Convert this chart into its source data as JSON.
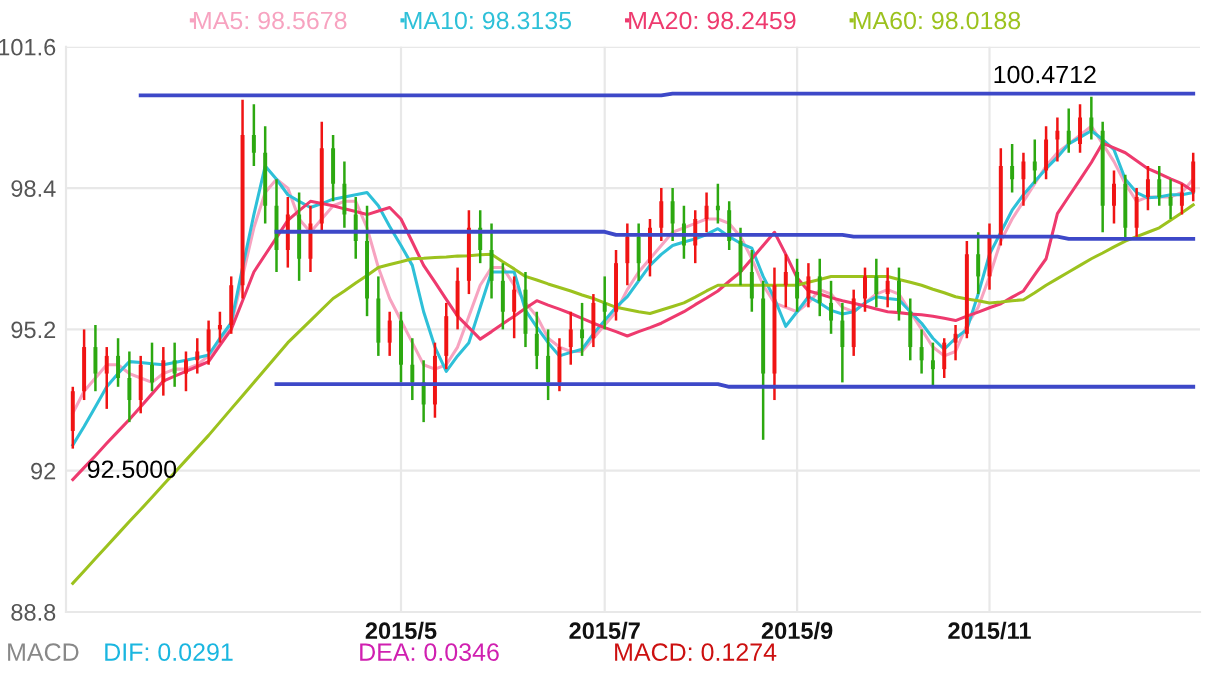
{
  "chart_data": {
    "type": "candlestick",
    "categories": [
      null,
      null,
      null,
      null,
      null,
      null,
      null,
      null,
      null,
      null,
      null,
      null,
      null,
      null,
      null,
      null,
      null,
      null,
      null,
      null,
      null,
      null,
      null,
      null,
      null,
      null,
      null,
      null,
      null,
      "2015/5",
      null,
      null,
      null,
      null,
      null,
      null,
      null,
      null,
      null,
      null,
      null,
      null,
      null,
      null,
      null,
      null,
      null,
      "2015/7",
      null,
      null,
      null,
      null,
      null,
      null,
      null,
      null,
      null,
      null,
      null,
      null,
      null,
      null,
      null,
      null,
      "2015/9",
      null,
      null,
      null,
      null,
      null,
      null,
      null,
      null,
      null,
      null,
      null,
      null,
      null,
      null,
      null,
      null,
      "2015/11",
      null,
      null,
      null,
      null,
      null,
      null,
      null,
      null,
      null,
      null,
      null,
      null,
      null,
      null,
      null,
      null,
      null,
      null
    ],
    "ohlc": [
      [
        92.9,
        93.9,
        92.5,
        93.8
      ],
      [
        93.8,
        95.2,
        93.6,
        94.8
      ],
      [
        94.8,
        95.3,
        93.8,
        94.2
      ],
      [
        94.2,
        94.8,
        93.4,
        94.6
      ],
      [
        94.6,
        95.0,
        93.9,
        94.1
      ],
      [
        94.1,
        94.7,
        93.1,
        93.6
      ],
      [
        93.6,
        94.6,
        93.3,
        94.4
      ],
      [
        94.4,
        94.9,
        93.8,
        94.0
      ],
      [
        94.0,
        94.8,
        93.7,
        94.5
      ],
      [
        94.5,
        94.9,
        93.9,
        94.2
      ],
      [
        94.2,
        94.7,
        93.8,
        94.5
      ],
      [
        94.5,
        95.0,
        94.2,
        94.7
      ],
      [
        94.7,
        95.4,
        94.4,
        95.2
      ],
      [
        95.2,
        95.6,
        94.9,
        95.3
      ],
      [
        95.3,
        96.4,
        95.1,
        96.2
      ],
      [
        96.2,
        100.4,
        95.9,
        99.6
      ],
      [
        99.6,
        100.3,
        98.9,
        99.2
      ],
      [
        99.2,
        99.8,
        97.6,
        98.0
      ],
      [
        98.0,
        98.6,
        96.5,
        97.0
      ],
      [
        97.0,
        98.2,
        96.6,
        97.8
      ],
      [
        97.8,
        98.3,
        96.3,
        96.8
      ],
      [
        96.8,
        98.0,
        96.5,
        97.6
      ],
      [
        97.6,
        99.9,
        97.4,
        99.3
      ],
      [
        99.3,
        99.6,
        98.1,
        98.5
      ],
      [
        98.5,
        99.0,
        97.5,
        97.8
      ],
      [
        97.8,
        98.2,
        96.8,
        97.2
      ],
      [
        97.2,
        98.0,
        95.5,
        95.9
      ],
      [
        95.9,
        96.4,
        94.6,
        94.9
      ],
      [
        94.9,
        95.6,
        94.6,
        95.4
      ],
      [
        95.4,
        95.6,
        94.0,
        94.4
      ],
      [
        94.4,
        95.0,
        93.6,
        94.0
      ],
      [
        94.0,
        94.5,
        93.1,
        93.5
      ],
      [
        93.5,
        94.9,
        93.2,
        94.6
      ],
      [
        94.6,
        95.8,
        94.3,
        95.5
      ],
      [
        95.5,
        96.6,
        95.2,
        96.3
      ],
      [
        96.3,
        97.9,
        96.0,
        97.5
      ],
      [
        97.5,
        97.9,
        96.7,
        97.0
      ],
      [
        97.0,
        97.6,
        95.9,
        96.3
      ],
      [
        96.3,
        96.7,
        95.2,
        95.6
      ],
      [
        95.6,
        96.4,
        95.0,
        96.1
      ],
      [
        96.1,
        96.5,
        94.8,
        95.1
      ],
      [
        95.1,
        95.6,
        94.3,
        94.6
      ],
      [
        94.6,
        95.2,
        93.6,
        94.0
      ],
      [
        94.0,
        95.0,
        93.8,
        94.8
      ],
      [
        94.8,
        95.6,
        94.4,
        95.2
      ],
      [
        95.2,
        95.8,
        94.6,
        95.0
      ],
      [
        95.0,
        96.0,
        94.8,
        95.8
      ],
      [
        95.8,
        96.4,
        95.2,
        95.6
      ],
      [
        95.6,
        97.0,
        95.4,
        96.7
      ],
      [
        96.7,
        97.6,
        96.2,
        97.3
      ],
      [
        97.3,
        97.6,
        96.3,
        96.7
      ],
      [
        96.7,
        97.7,
        96.4,
        97.5
      ],
      [
        97.5,
        98.4,
        97.2,
        98.1
      ],
      [
        98.1,
        98.4,
        97.2,
        97.6
      ],
      [
        97.6,
        98.0,
        96.8,
        97.1
      ],
      [
        97.1,
        97.9,
        96.7,
        97.7
      ],
      [
        97.7,
        98.3,
        97.4,
        98.0
      ],
      [
        98.0,
        98.5,
        97.6,
        97.9
      ],
      [
        97.9,
        98.1,
        97.0,
        97.2
      ],
      [
        97.2,
        97.5,
        96.2,
        96.5
      ],
      [
        96.5,
        97.0,
        95.6,
        95.9
      ],
      [
        95.9,
        96.3,
        92.7,
        94.2
      ],
      [
        94.2,
        96.6,
        93.6,
        96.2
      ],
      [
        96.2,
        96.9,
        95.7,
        96.5
      ],
      [
        96.5,
        96.8,
        95.6,
        95.9
      ],
      [
        95.9,
        96.7,
        95.7,
        96.4
      ],
      [
        96.4,
        96.8,
        95.5,
        95.8
      ],
      [
        95.8,
        96.3,
        95.1,
        95.4
      ],
      [
        95.4,
        95.8,
        94.0,
        94.8
      ],
      [
        94.8,
        96.1,
        94.6,
        95.9
      ],
      [
        95.9,
        96.6,
        95.6,
        96.4
      ],
      [
        96.4,
        96.8,
        95.7,
        96.0
      ],
      [
        96.0,
        96.6,
        95.7,
        96.3
      ],
      [
        96.3,
        96.6,
        95.4,
        95.6
      ],
      [
        95.6,
        95.9,
        94.5,
        94.8
      ],
      [
        94.8,
        95.2,
        94.2,
        94.5
      ],
      [
        94.5,
        94.9,
        93.9,
        94.3
      ],
      [
        94.3,
        95.0,
        94.1,
        94.9
      ],
      [
        94.9,
        95.3,
        94.5,
        95.1
      ],
      [
        95.1,
        97.2,
        95.0,
        96.9
      ],
      [
        96.9,
        97.4,
        96.0,
        96.4
      ],
      [
        96.4,
        97.6,
        96.1,
        97.3
      ],
      [
        97.3,
        99.3,
        97.1,
        98.9
      ],
      [
        98.9,
        99.4,
        98.3,
        98.6
      ],
      [
        98.6,
        99.2,
        98.0,
        99.0
      ],
      [
        99.0,
        99.5,
        98.5,
        98.8
      ],
      [
        98.8,
        99.8,
        98.6,
        99.5
      ],
      [
        99.5,
        100.0,
        99.0,
        99.7
      ],
      [
        99.7,
        100.2,
        99.2,
        99.4
      ],
      [
        99.4,
        100.3,
        99.2,
        100.0
      ],
      [
        100.0,
        100.4712,
        99.5,
        99.7
      ],
      [
        99.7,
        99.9,
        97.4,
        98.0
      ],
      [
        98.0,
        98.8,
        97.6,
        98.5
      ],
      [
        98.5,
        98.7,
        97.2,
        97.5
      ],
      [
        97.5,
        98.4,
        97.3,
        98.2
      ],
      [
        98.2,
        98.9,
        97.9,
        98.6
      ],
      [
        98.6,
        98.9,
        98.0,
        98.2
      ],
      [
        98.2,
        98.6,
        97.7,
        98.0
      ],
      [
        98.0,
        98.5,
        97.8,
        98.3
      ],
      [
        98.3,
        99.2,
        98.1,
        99.0
      ]
    ],
    "colors": [
      "#f01414",
      "#f01414",
      "#2ca810",
      "#f01414",
      "#2ca810",
      "#2ca810",
      "#f01414",
      "#2ca810",
      "#f01414",
      "#2ca810",
      "#f01414",
      "#f01414",
      "#f01414",
      "#f01414",
      "#f01414",
      "#f01414",
      "#2ca810",
      "#2ca810",
      "#2ca810",
      "#f01414",
      "#2ca810",
      "#f01414",
      "#f01414",
      "#2ca810",
      "#2ca810",
      "#2ca810",
      "#2ca810",
      "#2ca810",
      "#f01414",
      "#2ca810",
      "#2ca810",
      "#2ca810",
      "#f01414",
      "#f01414",
      "#f01414",
      "#f01414",
      "#2ca810",
      "#2ca810",
      "#2ca810",
      "#f01414",
      "#2ca810",
      "#2ca810",
      "#2ca810",
      "#f01414",
      "#f01414",
      "#2ca810",
      "#f01414",
      "#2ca810",
      "#f01414",
      "#f01414",
      "#2ca810",
      "#f01414",
      "#f01414",
      "#2ca810",
      "#2ca810",
      "#f01414",
      "#f01414",
      "#2ca810",
      "#2ca810",
      "#2ca810",
      "#2ca810",
      "#2ca810",
      "#f01414",
      "#f01414",
      "#2ca810",
      "#f01414",
      "#2ca810",
      "#2ca810",
      "#2ca810",
      "#f01414",
      "#f01414",
      "#2ca810",
      "#f01414",
      "#2ca810",
      "#2ca810",
      "#2ca810",
      "#2ca810",
      "#f01414",
      "#f01414",
      "#f01414",
      "#2ca810",
      "#f01414",
      "#f01414",
      "#2ca810",
      "#f01414",
      "#2ca810",
      "#f01414",
      "#f01414",
      "#2ca810",
      "#f01414",
      "#2ca810",
      "#2ca810",
      "#f01414",
      "#2ca810",
      "#f01414",
      "#f01414",
      "#2ca810",
      "#2ca810",
      "#f01414",
      "#f01414"
    ],
    "series": [
      {
        "name": "MA5: 98.5678",
        "type": "line",
        "color": "#f7a3c0",
        "values": [
          93.3,
          93.8,
          94.1,
          94.4,
          94.4,
          94.2,
          94.1,
          94.0,
          94.2,
          94.3,
          94.3,
          94.4,
          94.6,
          94.9,
          95.3,
          96.4,
          97.5,
          98.3,
          98.6,
          98.4,
          97.7,
          97.4,
          97.7,
          98.0,
          98.1,
          98.1,
          97.5,
          96.6,
          95.9,
          95.4,
          94.9,
          94.4,
          94.3,
          94.4,
          94.8,
          95.5,
          96.2,
          96.6,
          96.6,
          96.2,
          95.8,
          95.5,
          95.0,
          94.8,
          94.7,
          94.7,
          95.0,
          95.3,
          95.6,
          96.1,
          96.5,
          96.8,
          97.1,
          97.4,
          97.5,
          97.6,
          97.7,
          97.7,
          97.6,
          97.3,
          96.8,
          96.2,
          95.8,
          95.7,
          95.6,
          95.8,
          96.1,
          96.0,
          95.7,
          95.6,
          95.8,
          96.0,
          96.1,
          96.0,
          95.6,
          95.2,
          94.8,
          94.6,
          94.7,
          95.3,
          95.7,
          96.4,
          97.2,
          97.7,
          98.1,
          98.5,
          98.9,
          99.2,
          99.4,
          99.6,
          99.8,
          99.4,
          99.0,
          98.5,
          98.1,
          98.2,
          98.2,
          98.2,
          98.3,
          98.6
        ]
      },
      {
        "name": "MA10: 98.3135",
        "type": "line",
        "color": "#2ec0d8",
        "values": [
          92.58,
          93.0,
          93.45,
          93.9,
          94.2,
          94.47,
          94.45,
          94.42,
          94.4,
          94.45,
          94.5,
          94.56,
          94.62,
          95.0,
          95.35,
          96.6,
          97.8,
          98.9,
          98.6,
          98.25,
          98.1,
          97.96,
          98.05,
          98.15,
          98.2,
          98.25,
          98.3,
          98.0,
          97.53,
          97.1,
          96.65,
          95.6,
          94.8,
          94.25,
          94.6,
          94.9,
          95.7,
          96.5,
          96.5,
          96.5,
          95.63,
          95.25,
          94.9,
          94.6,
          94.68,
          94.75,
          95.1,
          95.4,
          95.7,
          95.94,
          96.3,
          96.65,
          96.9,
          97.1,
          97.18,
          97.25,
          97.35,
          97.48,
          97.3,
          97.15,
          97.04,
          96.4,
          95.9,
          95.27,
          95.6,
          95.94,
          95.8,
          95.63,
          95.55,
          95.6,
          95.8,
          95.94,
          95.9,
          95.87,
          95.6,
          95.34,
          95.0,
          94.75,
          95.0,
          95.2,
          96.0,
          96.9,
          97.4,
          97.9,
          98.25,
          98.55,
          98.84,
          99.1,
          99.4,
          99.55,
          99.7,
          99.5,
          99.27,
          98.6,
          98.3,
          98.18,
          98.2,
          98.25,
          98.25,
          98.3
        ]
      },
      {
        "name": "MA20: 98.2459",
        "type": "line",
        "color": "#ee3a6e",
        "values": [
          91.8,
          92.07,
          92.34,
          92.62,
          92.89,
          93.16,
          93.45,
          93.74,
          94.03,
          94.14,
          94.25,
          94.36,
          94.47,
          94.84,
          95.2,
          95.85,
          96.5,
          96.89,
          97.28,
          97.67,
          97.89,
          98.1,
          98.05,
          98.0,
          97.93,
          97.87,
          97.8,
          97.88,
          97.96,
          97.7,
          97.18,
          96.65,
          96.27,
          95.88,
          95.5,
          95.24,
          94.98,
          95.15,
          95.33,
          95.5,
          95.68,
          95.85,
          95.75,
          95.66,
          95.56,
          95.45,
          95.34,
          95.24,
          95.15,
          95.05,
          95.15,
          95.24,
          95.34,
          95.47,
          95.6,
          95.76,
          95.91,
          96.07,
          96.29,
          96.5,
          96.8,
          97.1,
          97.4,
          96.9,
          96.37,
          96.07,
          96.0,
          95.92,
          95.85,
          95.79,
          95.73,
          95.66,
          95.6,
          95.58,
          95.55,
          95.53,
          95.5,
          95.45,
          95.4,
          95.5,
          95.59,
          95.69,
          95.78,
          95.93,
          96.07,
          96.44,
          96.8,
          97.82,
          98.21,
          98.59,
          98.98,
          99.42,
          99.31,
          99.2,
          99.02,
          98.84,
          98.73,
          98.61,
          98.5,
          98.33
        ]
      },
      {
        "name": "MA60: 98.0188",
        "type": "line",
        "color": "#9cc21e",
        "values": [
          89.45,
          89.73,
          90.01,
          90.29,
          90.57,
          90.85,
          91.12,
          91.4,
          91.68,
          91.96,
          92.24,
          92.52,
          92.8,
          93.1,
          93.4,
          93.7,
          94.0,
          94.3,
          94.6,
          94.9,
          95.15,
          95.4,
          95.65,
          95.9,
          96.07,
          96.25,
          96.42,
          96.6,
          96.67,
          96.73,
          96.8,
          96.81,
          96.83,
          96.84,
          96.86,
          96.87,
          96.89,
          96.9,
          96.73,
          96.57,
          96.4,
          96.32,
          96.23,
          96.15,
          96.07,
          95.98,
          95.9,
          95.8,
          95.7,
          95.65,
          95.6,
          95.56,
          95.64,
          95.72,
          95.8,
          95.93,
          96.07,
          96.2,
          96.2,
          96.2,
          96.2,
          96.2,
          96.2,
          96.2,
          96.2,
          96.27,
          96.33,
          96.4,
          96.4,
          96.4,
          96.4,
          96.4,
          96.4,
          96.33,
          96.27,
          96.2,
          96.11,
          96.03,
          95.94,
          95.89,
          95.85,
          95.8,
          95.82,
          95.85,
          95.87,
          96.03,
          96.2,
          96.35,
          96.5,
          96.65,
          96.8,
          96.93,
          97.07,
          97.2,
          97.3,
          97.4,
          97.5,
          97.67,
          97.84,
          98.02
        ]
      },
      {
        "type": "line",
        "color": "#3d48c8",
        "values": [
          null,
          null,
          null,
          null,
          null,
          null,
          100.5,
          100.5,
          100.5,
          100.5,
          100.5,
          100.5,
          100.5,
          100.5,
          100.5,
          100.5,
          100.5,
          100.5,
          100.5,
          100.5,
          100.5,
          100.5,
          100.5,
          100.5,
          100.5,
          100.5,
          100.5,
          100.5,
          100.5,
          100.5,
          100.5,
          100.5,
          100.5,
          100.5,
          100.5,
          100.5,
          100.5,
          100.5,
          100.5,
          100.5,
          100.5,
          100.5,
          100.5,
          100.5,
          100.5,
          100.5,
          100.5,
          100.5,
          100.5,
          100.5,
          100.5,
          100.5,
          100.5,
          100.54,
          100.54,
          100.54,
          100.54,
          100.54,
          100.54,
          100.54,
          100.54,
          100.54,
          100.54,
          100.54,
          100.54,
          100.54,
          100.54,
          100.54,
          100.54,
          100.54,
          100.54,
          100.54,
          100.54,
          100.54,
          100.54,
          100.54,
          100.54,
          100.54,
          100.54,
          100.54,
          100.54,
          100.54,
          100.54,
          100.54,
          100.54,
          100.54,
          100.54,
          100.54,
          100.54,
          100.54,
          100.54,
          100.54,
          100.54,
          100.54,
          100.54,
          100.54,
          100.54,
          100.54,
          100.54,
          100.54
        ]
      },
      {
        "type": "line",
        "color": "#3d48c8",
        "values": [
          null,
          null,
          null,
          null,
          null,
          null,
          null,
          null,
          null,
          null,
          null,
          null,
          null,
          null,
          null,
          null,
          null,
          null,
          97.41,
          97.41,
          97.41,
          97.41,
          97.41,
          97.41,
          97.41,
          97.41,
          97.41,
          97.41,
          97.41,
          97.41,
          97.41,
          97.41,
          97.41,
          97.41,
          97.41,
          97.41,
          97.41,
          97.41,
          97.41,
          97.41,
          97.41,
          97.41,
          97.41,
          97.41,
          97.41,
          97.41,
          97.41,
          97.41,
          97.34,
          97.34,
          97.34,
          97.34,
          97.34,
          97.34,
          97.34,
          97.34,
          97.34,
          97.34,
          97.34,
          97.34,
          97.34,
          97.34,
          97.34,
          97.34,
          97.34,
          97.34,
          97.34,
          97.34,
          97.34,
          97.3,
          97.3,
          97.3,
          97.3,
          97.3,
          97.3,
          97.3,
          97.3,
          97.3,
          97.3,
          97.3,
          97.3,
          97.3,
          97.3,
          97.3,
          97.3,
          97.3,
          97.3,
          97.3,
          97.25,
          97.25,
          97.25,
          97.25,
          97.25,
          97.25,
          97.25,
          97.25,
          97.25,
          97.25,
          97.25,
          97.25
        ]
      },
      {
        "type": "line",
        "color": "#3d48c8",
        "values": [
          null,
          null,
          null,
          null,
          null,
          null,
          null,
          null,
          null,
          null,
          null,
          null,
          null,
          null,
          null,
          null,
          null,
          null,
          93.96,
          93.96,
          93.96,
          93.96,
          93.96,
          93.96,
          93.96,
          93.96,
          93.96,
          93.96,
          93.96,
          93.96,
          93.96,
          93.96,
          93.96,
          93.96,
          93.96,
          93.96,
          93.96,
          93.96,
          93.96,
          93.96,
          93.96,
          93.96,
          93.96,
          93.96,
          93.96,
          93.96,
          93.96,
          93.96,
          93.96,
          93.96,
          93.96,
          93.96,
          93.96,
          93.96,
          93.96,
          93.96,
          93.96,
          93.96,
          93.9,
          93.9,
          93.9,
          93.9,
          93.9,
          93.9,
          93.9,
          93.9,
          93.9,
          93.9,
          93.9,
          93.9,
          93.9,
          93.9,
          93.9,
          93.9,
          93.9,
          93.9,
          93.9,
          93.9,
          93.9,
          93.9,
          93.9,
          93.9,
          93.9,
          93.9,
          93.9,
          93.9,
          93.9,
          93.9,
          93.9,
          93.9,
          93.9,
          93.9,
          93.9,
          93.9,
          93.9,
          93.9,
          93.9,
          93.9,
          93.9,
          93.9
        ]
      }
    ],
    "ylim": [
      88.8,
      101.6
    ],
    "yticks": [
      88.8,
      92,
      95.2,
      98.4,
      101.6
    ],
    "grid": true,
    "legend": "top",
    "annotations": [
      "100.4712",
      "92.5000",
      "MACD",
      "DIF: 0.0291",
      "DEA: 0.0346",
      "MACD: 0.1274"
    ]
  }
}
